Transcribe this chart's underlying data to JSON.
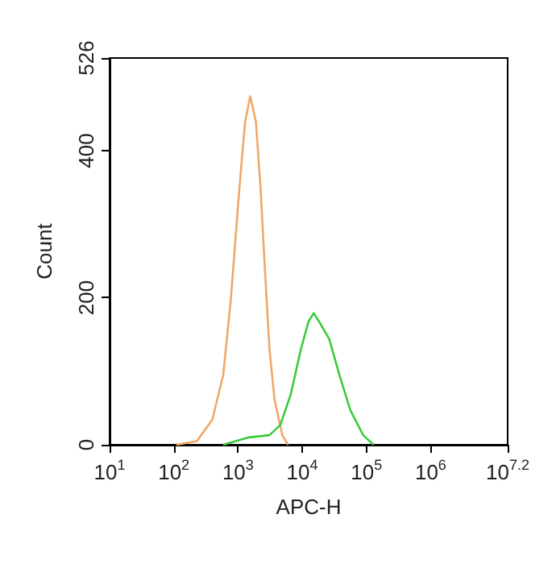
{
  "chart_data": {
    "type": "line",
    "xlabel": "APC-H",
    "ylabel": "Count",
    "log": "x",
    "grid": false,
    "xlim": [
      10,
      15848932
    ],
    "xticks": [
      {
        "value": 10,
        "label": "10$^{1}$"
      },
      {
        "value": 100,
        "label": "10$^{2}$"
      },
      {
        "value": 1000,
        "label": "10$^{3}$"
      },
      {
        "value": 10000,
        "label": "10$^{4}$"
      },
      {
        "value": 100000,
        "label": "10$^{5}$"
      },
      {
        "value": 1000000,
        "label": "10$^{6}$"
      },
      {
        "value": 15848932,
        "label": "10$^{7.2}$"
      }
    ],
    "ylim": [
      0,
      526
    ],
    "yticks": [
      0,
      200,
      400,
      526
    ],
    "series": [
      {
        "color": "#f0a868",
        "x": [
          110,
          229,
          398,
          589,
          776,
          1023,
          1288,
          1549,
          1905,
          2239,
          2570,
          3090,
          3715,
          4898,
          6026
        ],
        "values": [
          0,
          5,
          34,
          95,
          199,
          336,
          439,
          474,
          439,
          351,
          253,
          130,
          61,
          13,
          0
        ]
      },
      {
        "color": "#3ccc3c",
        "x": [
          589,
          1479,
          3090,
          4571,
          6607,
          9550,
          12589,
          15136,
          18197,
          26303,
          38019,
          56234,
          89125,
          128825
        ],
        "values": [
          0,
          10,
          13,
          27,
          68,
          130,
          168,
          179,
          168,
          144,
          95,
          47,
          13,
          0
        ]
      }
    ]
  }
}
